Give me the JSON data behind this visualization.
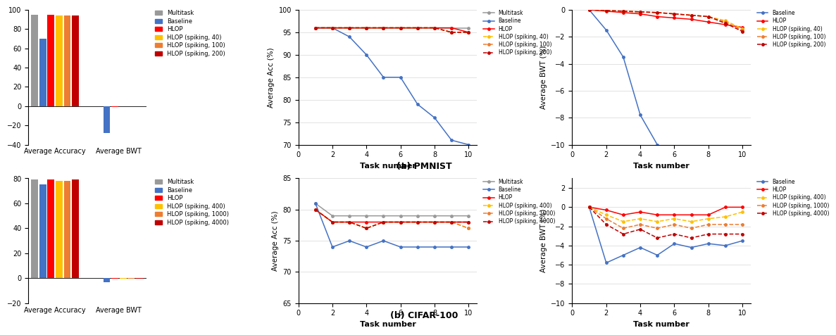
{
  "pmnist": {
    "bar_avg_acc": [
      95,
      70,
      95,
      94,
      94,
      94
    ],
    "bar_avg_bwt": [
      0,
      -28,
      -0.5,
      -0.3,
      -0.3,
      -0.3
    ],
    "avg_acc_tasks": {
      "Multitask": [
        96,
        96,
        96,
        96,
        96,
        96,
        96,
        96,
        96,
        96
      ],
      "Baseline": [
        96,
        96,
        94,
        90,
        85,
        85,
        79,
        76,
        71,
        70
      ],
      "HLOP": [
        96,
        96,
        96,
        96,
        96,
        96,
        96,
        96,
        96,
        95
      ],
      "HLOP (spiking, 40)": [
        96,
        96,
        96,
        96,
        96,
        96,
        96,
        96,
        95,
        95
      ],
      "HLOP (spiking, 100)": [
        96,
        96,
        96,
        96,
        96,
        96,
        96,
        96,
        95,
        95
      ],
      "HLOP (spiking, 200)": [
        96,
        96,
        96,
        96,
        96,
        96,
        96,
        96,
        95,
        95
      ]
    },
    "avg_bwt_tasks": {
      "Baseline": [
        0,
        -1.5,
        -3.5,
        -7.8,
        -10.0,
        null,
        null,
        null,
        null,
        null
      ],
      "HLOP": [
        0,
        -0.1,
        -0.2,
        -0.3,
        -0.5,
        -0.6,
        -0.7,
        -0.9,
        -1.1,
        -1.3
      ],
      "HLOP (spiking, 40)": [
        0,
        -0.05,
        -0.1,
        -0.15,
        -0.2,
        -0.3,
        -0.4,
        -0.5,
        -0.8,
        -1.4
      ],
      "HLOP (spiking, 100)": [
        0,
        -0.05,
        -0.1,
        -0.15,
        -0.2,
        -0.3,
        -0.4,
        -0.5,
        -0.9,
        -1.5
      ],
      "HLOP (spiking, 200)": [
        0,
        -0.05,
        -0.1,
        -0.15,
        -0.2,
        -0.3,
        -0.4,
        -0.5,
        -1.0,
        -1.6
      ]
    },
    "acc_ylim": [
      70,
      100
    ],
    "bwt_ylim": [
      -10,
      0
    ],
    "bar_ylim": [
      -40,
      100
    ],
    "bar_yticks": [
      -40,
      -20,
      0,
      20,
      40,
      60,
      80,
      100
    ],
    "legend_top": [
      "Multitask",
      "Baseline",
      "HLOP",
      "HLOP (spiking, 40)",
      "HLOP (spiking, 100)",
      "HLOP (spiking, 200)"
    ]
  },
  "cifar100": {
    "bar_avg_acc": [
      79,
      75,
      79,
      78,
      78,
      79
    ],
    "bar_avg_bwt": [
      0,
      -3,
      -0.3,
      -0.3,
      -0.3,
      -0.3
    ],
    "avg_acc_tasks": {
      "Multitask": [
        81,
        79,
        79,
        79,
        79,
        79,
        79,
        79,
        79,
        79
      ],
      "Baseline": [
        81,
        74,
        75,
        74,
        75,
        74,
        74,
        74,
        74,
        74
      ],
      "HLOP": [
        80,
        78,
        78,
        78,
        78,
        78,
        78,
        78,
        78,
        78
      ],
      "HLOP (spiking, 400)": [
        80,
        78,
        78,
        77,
        78,
        78,
        78,
        78,
        78,
        77
      ],
      "HLOP (spiking, 1000)": [
        80,
        78,
        78,
        77,
        78,
        78,
        78,
        78,
        78,
        77
      ],
      "HLOP (spiking, 4000)": [
        80,
        78,
        78,
        77,
        78,
        78,
        78,
        78,
        78,
        78
      ]
    },
    "avg_bwt_tasks": {
      "Baseline": [
        0,
        -5.8,
        -5.0,
        -4.2,
        -5.0,
        -3.8,
        -4.2,
        -3.8,
        -4.0,
        -3.5
      ],
      "HLOP": [
        0,
        -0.3,
        -0.8,
        -0.5,
        -0.8,
        -0.8,
        -0.8,
        -0.8,
        0,
        0
      ],
      "HLOP (spiking, 400)": [
        0,
        -0.8,
        -1.5,
        -1.2,
        -1.5,
        -1.2,
        -1.5,
        -1.2,
        -1.0,
        -0.5
      ],
      "HLOP (spiking, 1000)": [
        0,
        -1.2,
        -2.2,
        -1.8,
        -2.2,
        -1.8,
        -2.2,
        -1.8,
        -1.8,
        -1.8
      ],
      "HLOP (spiking, 4000)": [
        0,
        -1.8,
        -2.8,
        -2.3,
        -3.2,
        -2.8,
        -3.2,
        -2.8,
        -2.8,
        -2.8
      ]
    },
    "acc_ylim": [
      65,
      85
    ],
    "bwt_ylim": [
      -10,
      3
    ],
    "bar_ylim": [
      -20,
      80
    ],
    "bar_yticks": [
      -20,
      0,
      20,
      40,
      60,
      80
    ],
    "legend_bot": [
      "Multitask",
      "Baseline",
      "HLOP",
      "HLOP (spiking, 400)",
      "HLOP (spiking, 1000)",
      "HLOP (spiking, 4000)"
    ]
  },
  "colors": {
    "Multitask": "#999999",
    "Baseline": "#4472C4",
    "HLOP": "#FF0000",
    "spiking_1": "#FFC000",
    "spiking_2": "#ED7D31",
    "spiking_3": "#C00000"
  }
}
